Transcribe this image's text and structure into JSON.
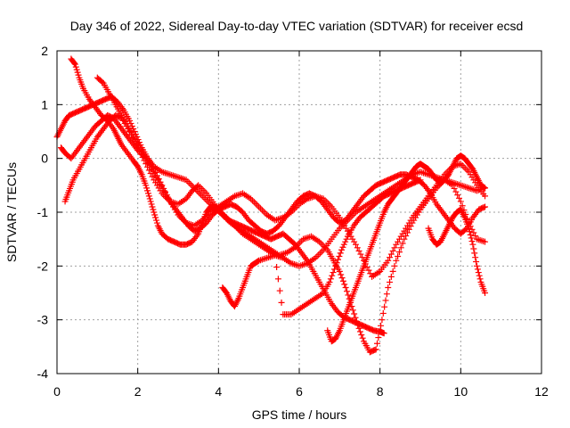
{
  "chart_data": {
    "type": "scatter",
    "title": "Day 346 of 2022, Sidereal Day-to-day VTEC variation (SDTVAR) for receiver ecsd",
    "xlabel": "GPS time / hours",
    "ylabel": "SDTVAR / TECUs",
    "xlim": [
      0,
      12
    ],
    "ylim": [
      -4,
      2
    ],
    "xticks": [
      0,
      2,
      4,
      6,
      8,
      10,
      12
    ],
    "yticks": [
      -4,
      -3,
      -2,
      -1,
      0,
      1,
      2
    ],
    "xtick_labels": [
      "0",
      "2",
      "4",
      "6",
      "8",
      "10",
      "12"
    ],
    "ytick_labels": [
      "-4",
      "-3",
      "-2",
      "-1",
      "0",
      "1",
      "2"
    ],
    "grid": true,
    "marker": "plus",
    "color": "#ff0000",
    "series": [
      {
        "x": [
          0.35,
          0.45,
          0.55,
          0.65,
          0.8,
          0.95,
          1.1,
          1.25,
          1.4,
          1.5,
          1.6,
          1.75,
          1.9,
          2.0,
          2.1,
          2.2,
          2.3,
          2.4,
          2.5,
          2.6,
          2.75,
          2.9,
          3.05,
          3.2,
          3.35,
          3.5,
          3.6,
          3.7,
          3.8,
          3.95,
          4.1,
          4.25,
          4.4,
          4.55,
          4.7,
          4.85,
          5.0,
          5.15,
          5.3,
          5.45,
          5.6,
          5.75,
          5.9,
          6.05,
          6.2,
          6.35,
          6.5,
          6.65,
          6.8,
          6.95,
          7.1,
          7.25,
          7.4,
          7.55,
          7.7,
          7.85,
          8.0,
          8.1
        ],
        "y": [
          1.85,
          1.75,
          1.5,
          1.3,
          1.1,
          0.95,
          0.8,
          0.7,
          0.55,
          0.4,
          0.25,
          0.1,
          -0.05,
          -0.15,
          -0.3,
          -0.5,
          -0.75,
          -1.0,
          -1.25,
          -1.4,
          -1.5,
          -1.55,
          -1.6,
          -1.6,
          -1.55,
          -1.4,
          -1.2,
          -1.0,
          -0.9,
          -0.95,
          -1.05,
          -1.15,
          -1.2,
          -1.25,
          -1.3,
          -1.35,
          -1.4,
          -1.45,
          -1.5,
          -1.45,
          -1.4,
          -1.5,
          -1.6,
          -1.75,
          -1.9,
          -2.1,
          -2.3,
          -2.5,
          -2.7,
          -2.85,
          -2.95,
          -3.0,
          -3.05,
          -3.1,
          -3.15,
          -3.2,
          -3.22,
          -3.25
        ]
      },
      {
        "x": [
          0.0,
          0.1,
          0.2,
          0.3,
          0.45,
          0.6,
          0.75,
          0.9,
          1.05,
          1.2,
          1.35,
          1.5,
          1.65,
          1.8,
          1.95,
          2.1,
          2.25,
          2.4,
          2.6,
          2.8,
          3.0,
          3.2,
          3.4,
          3.6,
          3.8,
          4.0,
          4.2,
          4.4,
          4.6,
          4.8,
          5.0,
          5.2,
          5.4,
          5.6,
          5.8,
          6.0,
          6.2,
          6.4,
          6.6,
          6.8,
          7.0,
          7.2,
          7.4,
          7.6,
          7.8,
          8.0,
          8.2,
          8.4,
          8.6,
          8.8,
          9.0,
          9.2,
          9.4,
          9.6,
          9.8,
          10.0,
          10.2,
          10.4,
          10.6
        ],
        "y": [
          0.4,
          0.55,
          0.7,
          0.8,
          0.85,
          0.9,
          0.95,
          1.0,
          1.05,
          1.1,
          1.15,
          1.05,
          0.9,
          0.7,
          0.45,
          0.2,
          0.0,
          -0.15,
          -0.25,
          -0.3,
          -0.35,
          -0.4,
          -0.55,
          -0.7,
          -0.85,
          -0.95,
          -1.1,
          -1.25,
          -1.4,
          -1.5,
          -1.6,
          -1.7,
          -1.8,
          -1.85,
          -1.95,
          -2.0,
          -1.95,
          -1.85,
          -1.7,
          -1.5,
          -1.3,
          -1.15,
          -1.0,
          -0.9,
          -0.8,
          -0.7,
          -0.6,
          -0.5,
          -0.4,
          -0.3,
          -0.25,
          -0.3,
          -0.35,
          -0.4,
          -0.45,
          -0.5,
          -0.55,
          -0.6,
          -0.55
        ]
      },
      {
        "x": [
          0.1,
          0.2,
          0.35,
          0.5,
          0.65,
          0.8,
          0.95,
          1.1,
          1.25,
          1.4,
          1.55,
          1.7,
          1.85,
          2.0,
          2.2,
          2.4,
          2.6,
          2.8,
          3.0,
          3.2,
          3.4,
          3.6,
          3.8,
          4.0,
          4.2,
          4.4,
          4.6,
          4.8,
          5.0,
          5.2,
          5.4,
          5.6,
          5.8,
          6.0,
          6.2,
          6.4,
          6.6,
          6.8,
          7.0,
          7.2,
          7.4,
          7.6,
          7.8,
          8.0,
          8.2,
          8.4,
          8.6,
          8.8,
          9.0,
          9.2,
          9.4,
          9.6,
          9.8,
          10.0,
          10.2,
          10.4,
          10.6
        ],
        "y": [
          0.2,
          0.1,
          0.0,
          0.15,
          0.3,
          0.45,
          0.6,
          0.7,
          0.8,
          0.75,
          0.6,
          0.45,
          0.3,
          0.15,
          0.0,
          -0.2,
          -0.5,
          -0.8,
          -1.05,
          -1.2,
          -1.25,
          -1.15,
          -1.0,
          -0.9,
          -0.8,
          -0.7,
          -0.65,
          -0.75,
          -0.9,
          -1.05,
          -1.15,
          -1.1,
          -1.0,
          -0.85,
          -0.75,
          -0.7,
          -0.75,
          -0.9,
          -1.1,
          -1.35,
          -1.6,
          -1.9,
          -2.2,
          -2.1,
          -1.9,
          -1.6,
          -1.35,
          -1.1,
          -0.9,
          -0.7,
          -0.5,
          -0.3,
          -0.15,
          -0.1,
          -0.25,
          -0.5,
          -0.7
        ]
      },
      {
        "x": [
          0.2,
          0.3,
          0.4,
          0.55,
          0.7,
          0.85,
          1.0,
          1.15,
          1.3,
          1.45,
          1.6,
          1.8,
          2.0,
          2.2,
          2.4,
          2.6,
          2.8,
          3.0,
          3.2,
          3.35,
          3.5,
          3.7,
          3.9,
          4.1,
          4.3,
          4.5,
          4.7,
          4.9,
          5.1,
          5.3,
          5.5,
          5.7,
          5.9,
          6.1,
          6.3,
          6.5,
          6.7,
          6.85,
          7.0,
          7.15,
          7.3,
          7.45,
          7.6,
          7.75,
          7.9,
          8.05,
          8.2,
          8.4,
          8.6,
          8.8,
          9.0,
          9.2,
          9.4,
          9.6,
          9.8,
          10.0,
          10.2,
          10.4,
          10.6
        ],
        "y": [
          -0.8,
          -0.6,
          -0.4,
          -0.2,
          0.0,
          0.2,
          0.4,
          0.55,
          0.7,
          0.8,
          0.75,
          0.5,
          0.2,
          -0.1,
          -0.4,
          -0.65,
          -0.8,
          -0.85,
          -0.75,
          -0.6,
          -0.5,
          -0.65,
          -0.85,
          -1.05,
          -1.2,
          -1.3,
          -1.4,
          -1.5,
          -1.6,
          -1.7,
          -1.8,
          -1.75,
          -1.65,
          -1.5,
          -1.45,
          -1.55,
          -1.7,
          -1.9,
          -2.1,
          -2.4,
          -2.75,
          -3.1,
          -3.4,
          -3.6,
          -3.55,
          -3.0,
          -2.4,
          -1.9,
          -1.5,
          -1.2,
          -0.95,
          -0.75,
          -0.55,
          -0.4,
          -0.5,
          -0.8,
          -1.2,
          -1.5,
          -1.55
        ]
      },
      {
        "x": [
          1.0,
          1.15,
          1.3,
          1.45,
          1.6,
          1.75,
          1.9,
          2.05,
          2.2,
          2.35,
          2.5,
          2.65,
          2.8,
          2.95,
          3.1,
          3.25,
          3.4,
          3.55,
          3.7,
          3.85,
          4.0,
          4.15,
          4.3,
          4.45,
          4.6,
          4.75,
          4.9,
          5.05,
          5.2,
          5.35,
          5.5,
          5.65,
          5.8,
          5.95,
          6.1,
          6.25,
          6.4,
          6.55,
          6.7,
          6.85,
          7.0,
          7.15,
          7.3,
          7.45,
          7.6,
          7.75,
          7.9,
          8.05,
          8.2,
          8.35,
          8.5,
          8.65,
          8.8,
          8.95,
          9.1,
          9.25,
          9.4,
          9.55,
          9.7,
          9.85,
          10.0,
          10.15,
          10.3,
          10.45,
          10.6
        ],
        "y": [
          1.5,
          1.4,
          1.2,
          1.0,
          0.8,
          0.6,
          0.4,
          0.2,
          0.0,
          -0.2,
          -0.4,
          -0.6,
          -0.8,
          -0.95,
          -1.1,
          -1.25,
          -1.35,
          -1.3,
          -1.2,
          -1.05,
          -0.95,
          -0.9,
          -0.85,
          -0.9,
          -1.0,
          -1.15,
          -1.25,
          -1.35,
          -1.4,
          -1.35,
          -1.25,
          -1.1,
          -0.95,
          -0.8,
          -0.7,
          -0.65,
          -0.7,
          -0.8,
          -0.95,
          -1.1,
          -1.2,
          -1.15,
          -1.0,
          -0.85,
          -0.7,
          -0.6,
          -0.5,
          -0.45,
          -0.4,
          -0.35,
          -0.3,
          -0.3,
          -0.35,
          -0.4,
          -0.5,
          -0.65,
          -0.85,
          -1.0,
          -1.15,
          -1.3,
          -1.4,
          -1.3,
          -1.1,
          -0.95,
          -0.9
        ]
      },
      {
        "x": [
          4.1,
          4.2,
          4.3,
          4.4,
          4.5,
          4.6,
          4.7,
          4.8,
          4.9,
          5.0,
          5.2,
          5.4,
          5.6,
          5.8,
          6.0,
          6.2,
          6.4,
          6.6,
          6.75,
          6.9,
          7.05,
          7.2,
          7.35,
          7.5,
          7.65,
          7.8,
          7.95,
          8.1,
          8.25,
          8.4,
          8.55,
          8.7,
          8.85,
          9.0
        ],
        "y": [
          -2.4,
          -2.5,
          -2.65,
          -2.75,
          -2.6,
          -2.4,
          -2.2,
          -2.0,
          -1.95,
          -1.9,
          -1.85,
          -1.8,
          -2.9,
          -2.9,
          -2.8,
          -2.7,
          -2.6,
          -2.5,
          -2.3,
          -2.0,
          -1.7,
          -1.45,
          -1.25,
          -1.1,
          -1.0,
          -0.9,
          -0.8,
          -0.7,
          -0.65,
          -0.6,
          -0.55,
          -0.5,
          -0.45,
          -0.4
        ]
      },
      {
        "x": [
          6.7,
          6.8,
          6.9,
          7.0,
          7.1,
          7.2,
          7.3,
          7.4,
          7.5,
          7.6,
          7.7,
          7.8,
          7.9,
          8.0,
          8.1,
          8.2,
          8.3,
          8.4,
          8.5,
          8.6,
          8.7,
          8.8,
          8.9,
          9.0,
          9.1,
          9.2,
          9.3,
          9.4,
          9.5,
          9.6,
          9.7,
          9.8,
          9.9,
          10.0,
          10.1,
          10.2,
          10.3,
          10.4,
          10.5,
          10.6
        ],
        "y": [
          -3.2,
          -3.4,
          -3.35,
          -3.2,
          -3.0,
          -2.8,
          -2.6,
          -2.4,
          -2.2,
          -2.0,
          -1.8,
          -1.6,
          -1.4,
          -1.2,
          -1.0,
          -0.85,
          -0.75,
          -0.65,
          -0.55,
          -0.45,
          -0.35,
          -0.25,
          -0.15,
          -0.1,
          -0.15,
          -0.2,
          -0.3,
          -0.4,
          -0.45,
          -0.4,
          -0.3,
          -0.15,
          0.0,
          0.05,
          0.0,
          -0.1,
          -0.2,
          -0.35,
          -0.5,
          -0.55
        ]
      },
      {
        "x": [
          9.2,
          9.3,
          9.4,
          9.5,
          9.6,
          9.7,
          9.8,
          9.9,
          10.0,
          10.1,
          10.2,
          10.3,
          10.4,
          10.5,
          10.6
        ],
        "y": [
          -1.3,
          -1.5,
          -1.6,
          -1.55,
          -1.4,
          -1.25,
          -1.1,
          -1.0,
          -0.95,
          -1.1,
          -1.3,
          -1.6,
          -2.0,
          -2.3,
          -2.5
        ]
      }
    ]
  }
}
